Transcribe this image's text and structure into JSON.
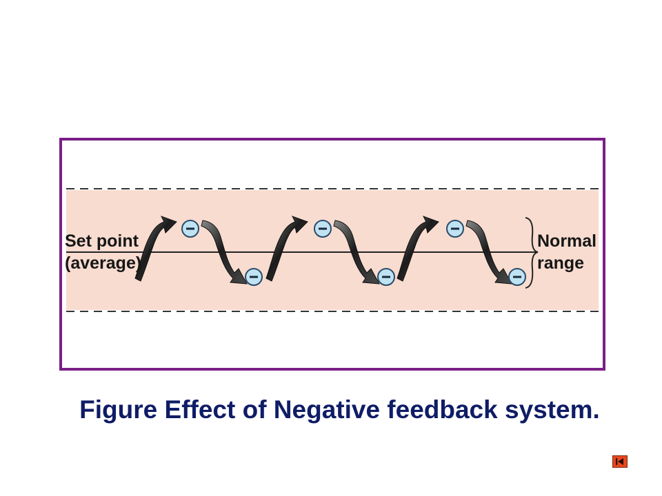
{
  "diagram": {
    "setpoint_label_line1": "Set point",
    "setpoint_label_line2": "(average)",
    "range_label_line1": "Normal",
    "range_label_line2": "range",
    "feedback_symbol": "−",
    "colors": {
      "frame": "#7a1f86",
      "band": "#f8dcd0",
      "arrow": "#2a2a2a",
      "minus_fill": "#bfe3f2",
      "minus_stroke": "#2a4a6a",
      "text": "#161616"
    },
    "icons": [
      "minus-circle-icon",
      "curved-arrow-icon",
      "brace-icon"
    ]
  },
  "caption": {
    "text": "Figure Effect of Negative feedback system.",
    "color": "#0f1c66"
  },
  "nav": {
    "back_icon": "skip-back-icon",
    "color": "#e8471f"
  }
}
